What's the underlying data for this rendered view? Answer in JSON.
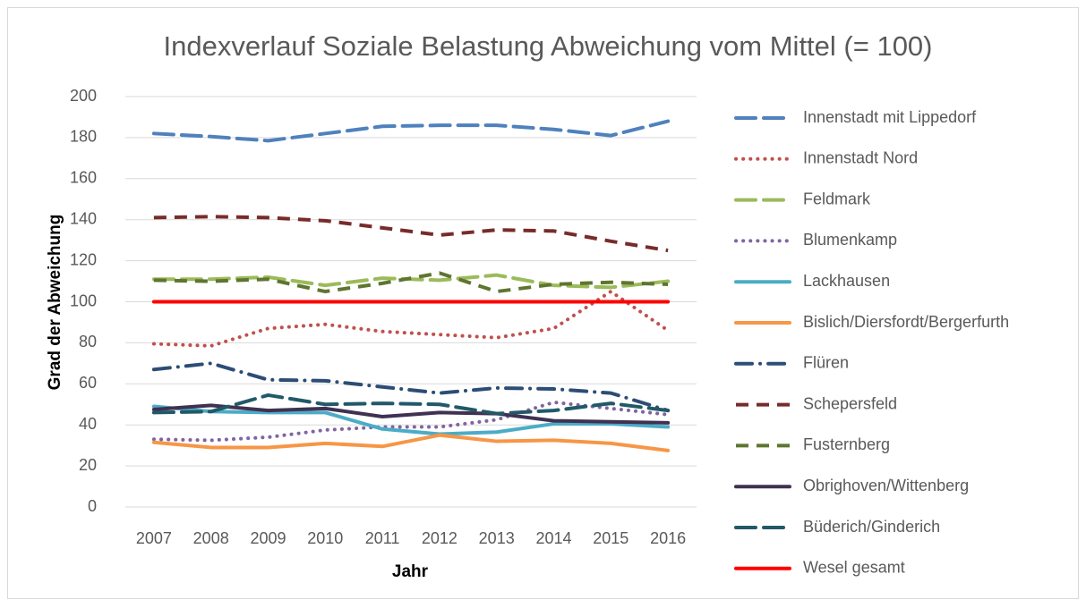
{
  "chart_data": {
    "type": "line",
    "title": "Indexverlauf Soziale Belastung Abweichung vom Mittel (= 100)",
    "x_label": "Jahr",
    "y_label": "Grad der Abweichung",
    "categories": [
      "2007",
      "2008",
      "2009",
      "2010",
      "2011",
      "2012",
      "2013",
      "2014",
      "2015",
      "2016"
    ],
    "ylim": [
      0,
      200
    ],
    "yticks": [
      0,
      20,
      40,
      60,
      80,
      100,
      120,
      140,
      160,
      180,
      200
    ],
    "grid": true,
    "legend": "right",
    "series": [
      {
        "name": "Innenstadt mit Lippedorf",
        "color": "#4f81bd",
        "style": "long-dash",
        "values": [
          182,
          180.5,
          178.5,
          182,
          185.5,
          186,
          186,
          184,
          181,
          188
        ]
      },
      {
        "name": "Innenstadt Nord",
        "color": "#c0504d",
        "style": "dot",
        "values": [
          79.5,
          78.5,
          87,
          89,
          85.5,
          84,
          82.5,
          87,
          105,
          86
        ]
      },
      {
        "name": "Feldmark",
        "color": "#9bbb59",
        "style": "long-dash",
        "values": [
          111,
          111,
          112,
          108,
          111.5,
          110.5,
          113,
          108,
          107,
          110
        ]
      },
      {
        "name": "Blumenkamp",
        "color": "#8064a2",
        "style": "dot",
        "values": [
          33,
          32.5,
          34,
          37.5,
          39,
          39,
          42.5,
          51,
          48,
          45
        ]
      },
      {
        "name": "Lackhausen",
        "color": "#4bacc6",
        "style": "solid",
        "values": [
          49,
          46.5,
          46,
          46,
          38,
          35.5,
          36.5,
          40.5,
          40.5,
          39
        ]
      },
      {
        "name": "Bislich/Diersfordt/Bergerfurth",
        "color": "#f79646",
        "style": "solid",
        "values": [
          31.5,
          29,
          29,
          31,
          29.5,
          35,
          32,
          32.5,
          31,
          27.5
        ]
      },
      {
        "name": "Flüren",
        "color": "#2c4d75",
        "style": "dash-dot",
        "values": [
          67,
          70,
          62,
          61.5,
          58.5,
          55.5,
          58,
          57.5,
          55.5,
          47
        ]
      },
      {
        "name": "Schepersfeld",
        "color": "#772c2a",
        "style": "dash",
        "values": [
          141,
          141.5,
          141,
          139.5,
          136,
          132.5,
          135,
          134.5,
          129.5,
          125
        ]
      },
      {
        "name": "Fusternberg",
        "color": "#5f7530",
        "style": "dash",
        "values": [
          110.5,
          110,
          111,
          105,
          109,
          114,
          105,
          108.5,
          109.5,
          108.5
        ]
      },
      {
        "name": "Obrighoven/Wittenberg",
        "color": "#403152",
        "style": "solid",
        "values": [
          47.5,
          49.5,
          47,
          48,
          44,
          46,
          45.5,
          42,
          41.5,
          41
        ]
      },
      {
        "name": "Büderich/Ginderich",
        "color": "#215968",
        "style": "long-dash",
        "values": [
          46,
          46.5,
          54.5,
          50,
          50.5,
          50,
          45.5,
          47,
          50.5,
          47
        ]
      },
      {
        "name": "Wesel gesamt",
        "color": "#ff0000",
        "style": "solid",
        "values": [
          100,
          100,
          100,
          100,
          100,
          100,
          100,
          100,
          100,
          100
        ]
      }
    ]
  }
}
